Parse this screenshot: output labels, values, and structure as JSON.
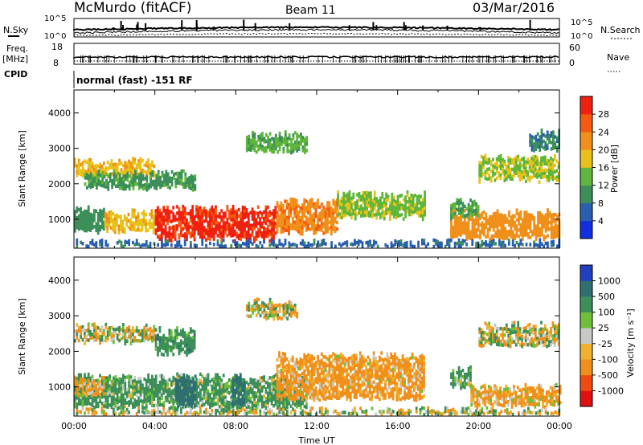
{
  "header": {
    "station": "McMurdo (fitACF)",
    "beam": "Beam 11",
    "date": "03/Mar/2016"
  },
  "top_panels": {
    "nsky_label": "N.Sky",
    "nsky_ticks": [
      "10^5",
      "10^0"
    ],
    "nsearch_label": "N.Search",
    "nsearch_ticks": [
      "10^5",
      "10^0"
    ],
    "freq_label": "Freq.",
    "freq_unit": "[MHz]",
    "freq_ticks": [
      "18",
      "8"
    ],
    "nave_label": "Nave",
    "nave_ticks": [
      "60",
      "0"
    ],
    "cpid_label": "CPID",
    "cpid_text": "normal (fast) -151 RF"
  },
  "colors": {
    "power": [
      "#1030e0",
      "#2a5eb0",
      "#3d8f5a",
      "#5fb63a",
      "#e8c21a",
      "#f0901a",
      "#f55a10",
      "#f02010"
    ],
    "velocity": [
      "#e01010",
      "#f04a10",
      "#f0901a",
      "#f0b030",
      "#c8c8c8",
      "#6ec038",
      "#3d8f5a",
      "#2e7070",
      "#2040c0"
    ]
  },
  "chart_data": [
    {
      "type": "heatmap",
      "name": "power",
      "ylabel": "Slant Range [km]",
      "ylim": [
        180,
        4650
      ],
      "yticks": [
        "1000",
        "2000",
        "3000",
        "4000"
      ],
      "xlim": [
        0,
        24
      ],
      "colorbar": {
        "label": "Power [dB]",
        "ticks": [
          "4",
          "8",
          "12",
          "16",
          "20",
          "24",
          "28"
        ],
        "levels": [
          0,
          4,
          8,
          12,
          16,
          20,
          24,
          28,
          32
        ]
      },
      "regions": [
        {
          "t0": 0.0,
          "t1": 1.5,
          "r0": 700,
          "r1": 1300,
          "v": 10
        },
        {
          "t0": 1.5,
          "t1": 4.0,
          "r0": 700,
          "r1": 1200,
          "v": 19
        },
        {
          "t0": 4.0,
          "t1": 10.0,
          "r0": 450,
          "r1": 1300,
          "v": 29
        },
        {
          "t0": 10.0,
          "t1": 13.0,
          "r0": 650,
          "r1": 1500,
          "v": 23
        },
        {
          "t0": 13.0,
          "t1": 17.3,
          "r0": 1100,
          "r1": 1700,
          "v": 15
        },
        {
          "t0": 0.0,
          "t1": 4.0,
          "r0": 2250,
          "r1": 2650,
          "v": 19
        },
        {
          "t0": 0.5,
          "t1": 6.0,
          "r0": 1900,
          "r1": 2300,
          "v": 11
        },
        {
          "t0": 8.5,
          "t1": 11.5,
          "r0": 2950,
          "r1": 3400,
          "v": 13
        },
        {
          "t0": 18.6,
          "t1": 24.0,
          "r0": 500,
          "r1": 1200,
          "v": 22
        },
        {
          "t0": 18.6,
          "t1": 20.0,
          "r0": 1100,
          "r1": 1500,
          "v": 12
        },
        {
          "t0": 20.0,
          "t1": 24.0,
          "r0": 2150,
          "r1": 2750,
          "v": 16
        },
        {
          "t0": 22.5,
          "t1": 24.0,
          "r0": 3000,
          "r1": 3450,
          "v": 9
        },
        {
          "t0": 0.0,
          "t1": 24.0,
          "r0": 200,
          "r1": 350,
          "v": 7
        }
      ]
    },
    {
      "type": "heatmap",
      "name": "velocity",
      "ylabel": "Slant Range [km]",
      "xlabel": "Time UT",
      "ylim": [
        180,
        4650
      ],
      "yticks": [
        "1000",
        "2000",
        "3000",
        "4000"
      ],
      "xlim": [
        0,
        24
      ],
      "xticks": [
        "00:00",
        "04:00",
        "08:00",
        "12:00",
        "16:00",
        "20:00",
        "00:00"
      ],
      "colorbar": {
        "label": "Velocity [m s⁻¹]",
        "ticks": [
          "-1000",
          "-500",
          "-100",
          "-25",
          "25",
          "100",
          "500",
          "1000"
        ],
        "levels": [
          -2000,
          -1000,
          -500,
          -100,
          -25,
          25,
          100,
          500,
          1000,
          2000
        ]
      },
      "regions": [
        {
          "t0": 0.0,
          "t1": 11.5,
          "r0": 450,
          "r1": 1300,
          "v": 200
        },
        {
          "t0": 0.0,
          "t1": 1.5,
          "r0": 800,
          "r1": 1250,
          "v": -150
        },
        {
          "t0": 5.0,
          "t1": 6.0,
          "r0": 500,
          "r1": 1300,
          "v": 700
        },
        {
          "t0": 7.8,
          "t1": 8.4,
          "r0": 500,
          "r1": 1300,
          "v": 700
        },
        {
          "t0": 10.0,
          "t1": 17.3,
          "r0": 700,
          "r1": 1900,
          "v": -200
        },
        {
          "t0": 0.0,
          "t1": 4.0,
          "r0": 2300,
          "r1": 2700,
          "v": 0
        },
        {
          "t0": 4.0,
          "t1": 6.0,
          "r0": 2000,
          "r1": 2600,
          "v": 300
        },
        {
          "t0": 8.5,
          "t1": 11.0,
          "r0": 3000,
          "r1": 3400,
          "v": 0
        },
        {
          "t0": 18.6,
          "t1": 19.6,
          "r0": 1000,
          "r1": 1500,
          "v": 200
        },
        {
          "t0": 19.6,
          "t1": 24.0,
          "r0": 500,
          "r1": 1000,
          "v": -150
        },
        {
          "t0": 20.0,
          "t1": 24.0,
          "r0": 2200,
          "r1": 2750,
          "v": 0
        },
        {
          "t0": 0.0,
          "t1": 24.0,
          "r0": 200,
          "r1": 350,
          "v": 30
        }
      ]
    }
  ]
}
